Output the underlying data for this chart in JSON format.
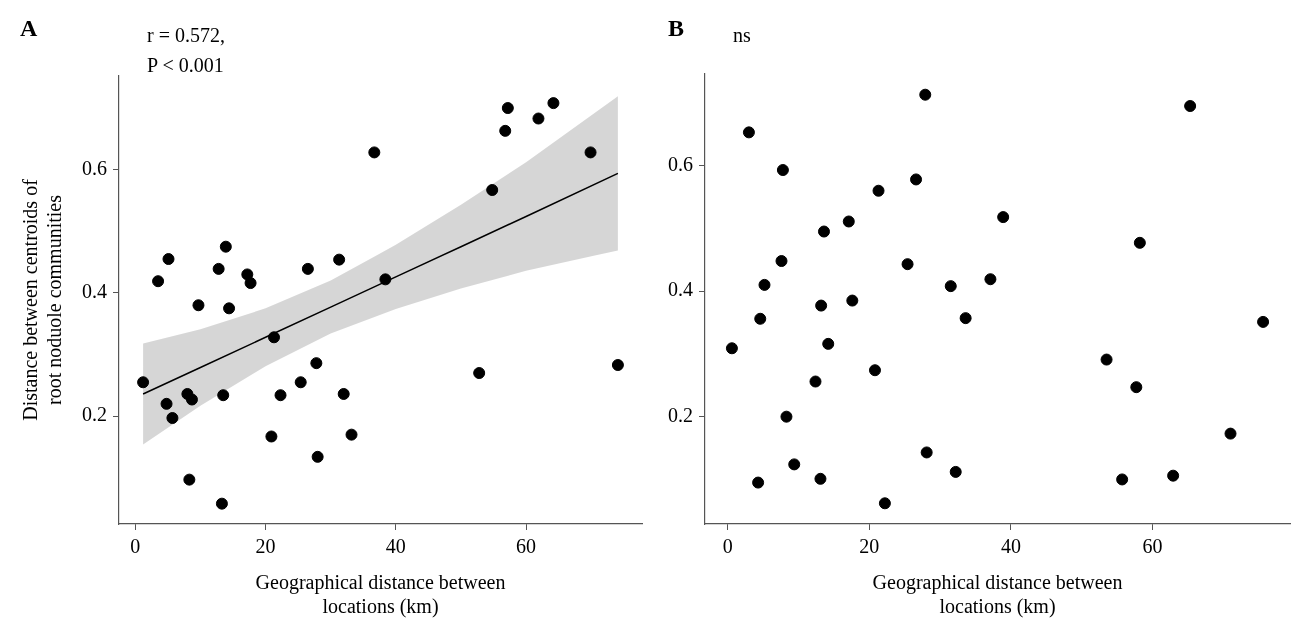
{
  "chart_data": [
    {
      "type": "scatter",
      "title": "A",
      "annotations": [
        "r = 0.572,",
        "P < 0.001"
      ],
      "xlabel": "Geographical distance between\nlocations (km)",
      "ylabel": "Distance between centroids of\nroot noduole communities",
      "xlim": [
        -2.5,
        77.8
      ],
      "xticks": [
        0,
        20,
        40,
        60
      ],
      "ylim": [
        0.025,
        0.752
      ],
      "yticks": [
        0.2,
        0.4,
        0.6
      ],
      "marker": "circle",
      "series": [
        {
          "type": "scatter",
          "color": "#000000",
          "x": [
            1.2,
            3.5,
            5.1,
            4.8,
            5.7,
            8.0,
            8.7,
            8.3,
            9.7,
            12.8,
            13.9,
            13.5,
            13.3,
            14.4,
            17.2,
            17.7,
            21.3,
            20.9,
            22.3,
            25.4,
            26.5,
            27.8,
            28.0,
            31.3,
            32.0,
            33.2,
            36.7,
            38.4,
            52.8,
            54.8,
            56.8,
            57.2,
            61.9,
            64.2,
            69.9,
            74.1
          ],
          "values": [
            0.255,
            0.419,
            0.455,
            0.22,
            0.197,
            0.236,
            0.227,
            0.097,
            0.38,
            0.439,
            0.475,
            0.234,
            0.058,
            0.375,
            0.43,
            0.416,
            0.328,
            0.167,
            0.234,
            0.255,
            0.439,
            0.286,
            0.134,
            0.454,
            0.236,
            0.17,
            0.628,
            0.422,
            0.27,
            0.567,
            0.663,
            0.7,
            0.683,
            0.708,
            0.628,
            0.283
          ]
        },
        {
          "type": "line",
          "color": "#000000",
          "line_style": "solid",
          "marker": "none",
          "x": [
            1.2,
            10,
            20,
            30,
            40,
            50,
            60,
            74.1
          ],
          "values": [
            0.236,
            0.279,
            0.328,
            0.377,
            0.426,
            0.475,
            0.524,
            0.594
          ],
          "lower": [
            0.154,
            0.217,
            0.281,
            0.334,
            0.374,
            0.407,
            0.436,
            0.469
          ],
          "upper": [
            0.318,
            0.341,
            0.375,
            0.42,
            0.478,
            0.543,
            0.612,
            0.719
          ]
        }
      ]
    },
    {
      "type": "scatter",
      "title": "B",
      "annotations": [
        "ns"
      ],
      "xlabel": "Geographical distance between\nlocations (km)",
      "xlim": [
        -3.2,
        79.4
      ],
      "xticks": [
        0,
        20,
        40,
        60
      ],
      "ylim": [
        0.029,
        0.746
      ],
      "yticks": [
        0.2,
        0.4,
        0.6
      ],
      "marker": "circle",
      "series": [
        {
          "type": "scatter",
          "color": "#000000",
          "x": [
            27.9,
            65.3,
            3.0,
            7.8,
            26.6,
            21.3,
            38.9,
            17.1,
            13.6,
            58.2,
            7.6,
            25.4,
            5.2,
            37.1,
            31.5,
            13.2,
            17.6,
            4.6,
            33.6,
            75.6,
            0.6,
            14.2,
            53.5,
            20.8,
            12.4,
            57.7,
            8.3,
            71.0,
            28.1,
            9.4,
            32.2,
            62.9,
            4.3,
            13.1,
            55.7,
            22.2
          ],
          "values": [
            0.713,
            0.695,
            0.653,
            0.593,
            0.578,
            0.56,
            0.518,
            0.511,
            0.495,
            0.477,
            0.448,
            0.443,
            0.41,
            0.419,
            0.408,
            0.377,
            0.385,
            0.356,
            0.357,
            0.351,
            0.309,
            0.316,
            0.291,
            0.274,
            0.256,
            0.247,
            0.2,
            0.173,
            0.143,
            0.124,
            0.112,
            0.106,
            0.095,
            0.101,
            0.1,
            0.062
          ]
        }
      ]
    }
  ]
}
